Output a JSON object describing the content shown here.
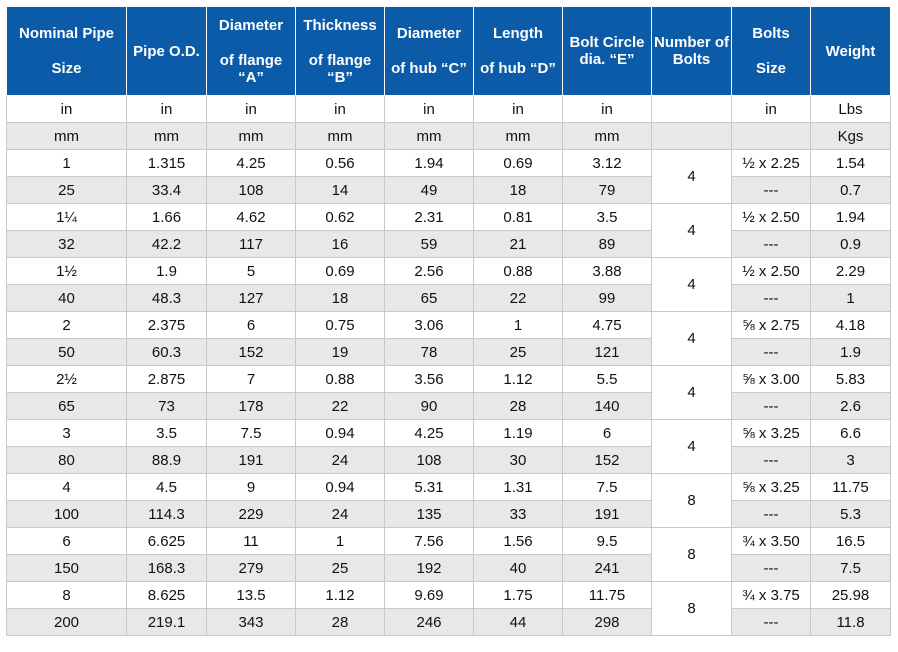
{
  "headers": [
    {
      "top": "Nominal Pipe",
      "bottom": "Size",
      "mode": "split"
    },
    {
      "top": "Pipe O.D.",
      "bottom": "",
      "mode": "single"
    },
    {
      "top": "Diameter",
      "bottom": "of flange “A”",
      "mode": "split"
    },
    {
      "top": "Thickness",
      "bottom": "of flange “B”",
      "mode": "split"
    },
    {
      "top": "Diameter",
      "bottom": "of hub “C”",
      "mode": "split"
    },
    {
      "top": "Length",
      "bottom": "of hub “D”",
      "mode": "split"
    },
    {
      "top": "Bolt Circle",
      "bottom": "dia. “E”",
      "mode": "split"
    },
    {
      "top": "Number of Bolts",
      "bottom": "",
      "mode": "single"
    },
    {
      "top": "Bolts",
      "bottom": "Size",
      "mode": "split"
    },
    {
      "top": "Weight",
      "bottom": "",
      "mode": "single"
    }
  ],
  "unit_rows": [
    [
      "in",
      "in",
      "in",
      "in",
      "in",
      "in",
      "in",
      "",
      "in",
      "Lbs"
    ],
    [
      "mm",
      "mm",
      "mm",
      "mm",
      "mm",
      "mm",
      "mm",
      "",
      "",
      "Kgs"
    ]
  ],
  "groups": [
    {
      "bolts": "4",
      "in": [
        "1",
        "1.315",
        "4.25",
        "0.56",
        "1.94",
        "0.69",
        "3.12",
        "½ x 2.25",
        "1.54"
      ],
      "mm": [
        "25",
        "33.4",
        "108",
        "14",
        "49",
        "18",
        "79",
        "---",
        "0.7"
      ]
    },
    {
      "bolts": "4",
      "in": [
        "1¼",
        "1.66",
        "4.62",
        "0.62",
        "2.31",
        "0.81",
        "3.5",
        "½ x 2.50",
        "1.94"
      ],
      "mm": [
        "32",
        "42.2",
        "117",
        "16",
        "59",
        "21",
        "89",
        "---",
        "0.9"
      ]
    },
    {
      "bolts": "4",
      "in": [
        "1½",
        "1.9",
        "5",
        "0.69",
        "2.56",
        "0.88",
        "3.88",
        "½ x 2.50",
        "2.29"
      ],
      "mm": [
        "40",
        "48.3",
        "127",
        "18",
        "65",
        "22",
        "99",
        "---",
        "1"
      ]
    },
    {
      "bolts": "4",
      "in": [
        "2",
        "2.375",
        "6",
        "0.75",
        "3.06",
        "1",
        "4.75",
        "⅝ x 2.75",
        "4.18"
      ],
      "mm": [
        "50",
        "60.3",
        "152",
        "19",
        "78",
        "25",
        "121",
        "---",
        "1.9"
      ]
    },
    {
      "bolts": "4",
      "in": [
        "2½",
        "2.875",
        "7",
        "0.88",
        "3.56",
        "1.12",
        "5.5",
        "⅝ x 3.00",
        "5.83"
      ],
      "mm": [
        "65",
        "73",
        "178",
        "22",
        "90",
        "28",
        "140",
        "---",
        "2.6"
      ]
    },
    {
      "bolts": "4",
      "in": [
        "3",
        "3.5",
        "7.5",
        "0.94",
        "4.25",
        "1.19",
        "6",
        "⅝ x 3.25",
        "6.6"
      ],
      "mm": [
        "80",
        "88.9",
        "191",
        "24",
        "108",
        "30",
        "152",
        "---",
        "3"
      ]
    },
    {
      "bolts": "8",
      "in": [
        "4",
        "4.5",
        "9",
        "0.94",
        "5.31",
        "1.31",
        "7.5",
        "⅝ x 3.25",
        "11.75"
      ],
      "mm": [
        "100",
        "114.3",
        "229",
        "24",
        "135",
        "33",
        "191",
        "---",
        "5.3"
      ]
    },
    {
      "bolts": "8",
      "in": [
        "6",
        "6.625",
        "11",
        "1",
        "7.56",
        "1.56",
        "9.5",
        "¾ x 3.50",
        "16.5"
      ],
      "mm": [
        "150",
        "168.3",
        "279",
        "25",
        "192",
        "40",
        "241",
        "---",
        "7.5"
      ]
    },
    {
      "bolts": "8",
      "in": [
        "8",
        "8.625",
        "13.5",
        "1.12",
        "9.69",
        "1.75",
        "11.75",
        "¾ x 3.75",
        "25.98"
      ],
      "mm": [
        "200",
        "219.1",
        "343",
        "28",
        "246",
        "44",
        "298",
        "---",
        "11.8"
      ]
    }
  ]
}
